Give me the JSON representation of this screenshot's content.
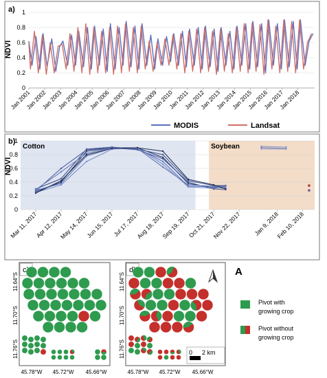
{
  "colors": {
    "modis": "#5b6fbf",
    "landsat": "#cf6f69",
    "cotton_bg": "#dfe5f1",
    "soybean_bg": "#f3dcc8",
    "pivot_green": "#2e9b4f",
    "pivot_red": "#c4302b",
    "frame": "#444444"
  },
  "chart_data": [
    {
      "type": "line",
      "panel_label": "a)",
      "ylabel": "NDVI",
      "ylim": [
        0,
        1
      ],
      "yticks": [
        "0",
        "0.2",
        "0.4",
        "0.6",
        "0.8",
        "1"
      ],
      "xlim": [
        2001.0,
        2019.05
      ],
      "xticks": [
        "Jan 2001",
        "Jan 2002",
        "Jan 2003",
        "Jan 2004",
        "Jan 2005",
        "Jan 2006",
        "Jan 2007",
        "Jan 2008",
        "Jan 2009",
        "Jan 2010",
        "Jan 2011",
        "Jan 2012",
        "Jan 2013",
        "Jan 2014",
        "Jan 2015",
        "Jan 2016",
        "Jan 2017",
        "Jan 2018"
      ],
      "legend_position": "bottom",
      "series": [
        {
          "name": "MODIS",
          "x": [
            2001.0,
            2001.2,
            2001.45,
            2001.7,
            2001.9,
            2002.15,
            2002.45,
            2002.7,
            2002.95,
            2003.15,
            2003.45,
            2003.7,
            2003.95,
            2004.15,
            2004.45,
            2004.7,
            2004.95,
            2005.15,
            2005.45,
            2005.7,
            2005.95,
            2006.15,
            2006.45,
            2006.7,
            2006.95,
            2007.15,
            2007.45,
            2007.7,
            2007.95,
            2008.15,
            2008.45,
            2008.7,
            2008.95,
            2009.15,
            2009.45,
            2009.7,
            2009.95,
            2010.15,
            2010.45,
            2010.7,
            2010.95,
            2011.15,
            2011.45,
            2011.7,
            2011.95,
            2012.15,
            2012.45,
            2012.7,
            2012.95,
            2013.15,
            2013.45,
            2013.7,
            2013.95,
            2014.15,
            2014.45,
            2014.7,
            2014.95,
            2015.15,
            2015.45,
            2015.7,
            2015.95,
            2016.15,
            2016.45,
            2016.7,
            2016.95,
            2017.15,
            2017.45,
            2017.7,
            2017.95,
            2018.15,
            2018.45,
            2018.7,
            2018.95
          ],
          "y": [
            0.62,
            0.3,
            0.68,
            0.25,
            0.72,
            0.28,
            0.65,
            0.22,
            0.55,
            0.62,
            0.3,
            0.7,
            0.3,
            0.75,
            0.28,
            0.8,
            0.25,
            0.82,
            0.3,
            0.78,
            0.22,
            0.85,
            0.25,
            0.8,
            0.3,
            0.88,
            0.28,
            0.82,
            0.25,
            0.85,
            0.3,
            0.7,
            0.25,
            0.65,
            0.3,
            0.68,
            0.35,
            0.72,
            0.3,
            0.75,
            0.28,
            0.78,
            0.3,
            0.8,
            0.25,
            0.82,
            0.28,
            0.78,
            0.22,
            0.8,
            0.3,
            0.75,
            0.25,
            0.82,
            0.3,
            0.85,
            0.25,
            0.88,
            0.28,
            0.85,
            0.2,
            0.9,
            0.3,
            0.85,
            0.25,
            0.9,
            0.28,
            0.88,
            0.25,
            0.9,
            0.3,
            0.62,
            0.72
          ]
        },
        {
          "name": "Landsat",
          "x": [
            2001.0,
            2001.1,
            2001.35,
            2001.6,
            2001.85,
            2002.1,
            2002.35,
            2002.6,
            2002.85,
            2003.1,
            2003.35,
            2003.6,
            2003.85,
            2004.1,
            2004.35,
            2004.6,
            2004.85,
            2005.1,
            2005.35,
            2005.6,
            2005.85,
            2006.1,
            2006.35,
            2006.6,
            2006.85,
            2007.1,
            2007.35,
            2007.6,
            2007.85,
            2008.1,
            2008.35,
            2008.6,
            2008.85,
            2009.1,
            2009.35,
            2009.6,
            2009.85,
            2010.1,
            2010.35,
            2010.6,
            2010.85,
            2011.1,
            2011.35,
            2011.6,
            2011.85,
            2012.1,
            2012.35,
            2012.6,
            2012.85,
            2013.1,
            2013.35,
            2013.6,
            2013.85,
            2014.1,
            2014.35,
            2014.6,
            2014.85,
            2015.1,
            2015.35,
            2015.6,
            2015.85,
            2016.1,
            2016.35,
            2016.6,
            2016.85,
            2017.1,
            2017.35,
            2017.6,
            2017.85,
            2018.1,
            2018.35,
            2018.6,
            2018.85
          ],
          "y": [
            0.6,
            0.25,
            0.75,
            0.2,
            0.7,
            0.18,
            0.6,
            0.2,
            0.55,
            0.58,
            0.25,
            0.72,
            0.22,
            0.8,
            0.2,
            0.85,
            0.18,
            0.8,
            0.2,
            0.75,
            0.2,
            0.8,
            0.18,
            0.82,
            0.2,
            0.85,
            0.22,
            0.8,
            0.2,
            0.82,
            0.25,
            0.62,
            0.22,
            0.6,
            0.3,
            0.65,
            0.3,
            0.7,
            0.25,
            0.72,
            0.2,
            0.75,
            0.22,
            0.78,
            0.2,
            0.8,
            0.22,
            0.75,
            0.18,
            0.78,
            0.22,
            0.72,
            0.2,
            0.8,
            0.22,
            0.85,
            0.2,
            0.86,
            0.22,
            0.84,
            0.18,
            0.9,
            0.25,
            0.82,
            0.2,
            0.9,
            0.22,
            0.88,
            0.2,
            0.9,
            0.25,
            0.6,
            0.72
          ]
        }
      ]
    },
    {
      "type": "line",
      "panel_label": "b)",
      "ylabel": "NDVI",
      "ylim": [
        0,
        1
      ],
      "yticks": [
        "0",
        "0.2",
        "0.4",
        "0.6",
        "0.8",
        "1"
      ],
      "xlim": [
        "2017-02-20",
        "2018-02-25"
      ],
      "xticks": [
        {
          "date": "2017-03-11",
          "label": "Mar 11, 2017"
        },
        {
          "date": "2017-04-12",
          "label": "Apr 12, 2017"
        },
        {
          "date": "2017-05-14",
          "label": "May 14, 2017"
        },
        {
          "date": "2017-06-15",
          "label": "Jun 15, 2017"
        },
        {
          "date": "2017-07-17",
          "label": "Jul 17, 2017"
        },
        {
          "date": "2017-08-18",
          "label": "Aug 18, 2017"
        },
        {
          "date": "2017-09-19",
          "label": "Sep 19, 2017"
        },
        {
          "date": "2017-10-21",
          "label": "Oct 21, 2017"
        },
        {
          "date": "2017-11-22",
          "label": "Nov 22, 2017"
        },
        {
          "date": "2018-01-09",
          "label": "Jan 9, 2018"
        },
        {
          "date": "2018-02-10",
          "label": "Feb 10, 2018"
        }
      ],
      "regions": [
        {
          "label": "Cotton",
          "from": "2017-02-20",
          "to": "2017-09-28"
        },
        {
          "label": "Soybean",
          "from": "2017-10-15",
          "to": "2018-02-25"
        }
      ],
      "series": [
        {
          "dates": [
            "2017-03-11",
            "2017-04-12",
            "2017-05-14",
            "2017-06-15",
            "2017-07-17",
            "2017-08-18",
            "2017-09-19",
            "2017-10-21",
            "2017-11-05"
          ],
          "values": [
            0.26,
            0.4,
            0.85,
            0.9,
            0.9,
            0.76,
            0.38,
            0.32,
            0.31
          ]
        },
        {
          "dates": [
            "2017-03-11",
            "2017-04-12",
            "2017-05-14",
            "2017-06-15",
            "2017-07-17",
            "2017-08-18",
            "2017-09-19",
            "2017-10-21",
            "2017-11-05"
          ],
          "values": [
            0.28,
            0.38,
            0.78,
            0.89,
            0.89,
            0.7,
            0.34,
            0.33,
            0.33
          ]
        },
        {
          "dates": [
            "2017-03-11",
            "2017-04-12",
            "2017-05-14",
            "2017-06-15",
            "2017-07-17",
            "2017-08-18",
            "2017-09-19",
            "2017-10-21",
            "2017-11-05"
          ],
          "values": [
            0.3,
            0.45,
            0.88,
            0.91,
            0.88,
            0.8,
            0.42,
            0.35,
            0.35
          ]
        },
        {
          "dates": [
            "2017-03-11",
            "2017-04-12",
            "2017-05-14",
            "2017-06-15",
            "2017-07-17",
            "2017-08-18",
            "2017-09-19",
            "2017-10-21",
            "2017-11-05"
          ],
          "values": [
            0.25,
            0.36,
            0.7,
            0.88,
            0.9,
            0.66,
            0.33,
            0.31,
            0.32
          ]
        },
        {
          "dates": [
            "2017-03-11",
            "2017-04-12",
            "2017-05-14",
            "2017-06-15",
            "2017-07-17",
            "2017-08-18",
            "2017-09-19",
            "2017-10-21",
            "2017-11-05"
          ],
          "values": [
            0.27,
            0.6,
            0.87,
            0.9,
            0.87,
            0.74,
            0.4,
            0.3,
            0.29
          ]
        },
        {
          "dates": [
            "2017-03-11",
            "2017-04-12",
            "2017-05-14",
            "2017-06-15",
            "2017-07-17",
            "2017-08-18",
            "2017-09-19",
            "2017-10-21",
            "2017-11-05"
          ],
          "values": [
            0.29,
            0.55,
            0.82,
            0.9,
            0.89,
            0.62,
            0.36,
            0.34,
            0.34
          ]
        },
        {
          "dates": [
            "2017-03-11",
            "2017-04-12",
            "2017-05-14",
            "2017-06-15",
            "2017-07-17",
            "2017-08-18",
            "2017-09-19",
            "2017-10-21",
            "2017-11-05"
          ],
          "values": [
            0.24,
            0.42,
            0.8,
            0.89,
            0.9,
            0.85,
            0.44,
            0.36,
            0.3
          ]
        },
        {
          "dates": [
            "2017-12-20",
            "2018-01-20"
          ],
          "values": [
            0.92,
            0.91
          ]
        },
        {
          "dates": [
            "2017-12-20",
            "2018-01-20"
          ],
          "values": [
            0.9,
            0.89
          ]
        },
        {
          "dates": [
            "2017-12-20",
            "2018-01-20"
          ],
          "values": [
            0.88,
            0.88
          ]
        }
      ],
      "points": [
        {
          "date": "2018-02-18",
          "value": 0.35,
          "color": "#a33a3a"
        },
        {
          "date": "2018-02-18",
          "value": 0.28,
          "color": "#7a4f8a"
        }
      ]
    }
  ],
  "maps": [
    {
      "panel_label": "c)",
      "yticks": [
        "11.64°S",
        "11.70°S",
        "11.76°S"
      ],
      "xticks": [
        "45.78°W",
        "45.72°W",
        "45.66°W"
      ]
    },
    {
      "panel_label": "d)",
      "yticks": [
        "11.64°S",
        "11.70°S",
        "11.76°S"
      ],
      "xticks": [
        "45.78°W",
        "45.72°W",
        "45.66°W"
      ],
      "scalebar_zero": "0",
      "scalebar_label": "2 km"
    }
  ],
  "legend_map": {
    "letter": "A",
    "items": [
      {
        "label_line1": "Pivot with",
        "label_line2": "growing crop"
      },
      {
        "label_line1": "Pivot without",
        "label_line2": "growing crop"
      }
    ]
  }
}
